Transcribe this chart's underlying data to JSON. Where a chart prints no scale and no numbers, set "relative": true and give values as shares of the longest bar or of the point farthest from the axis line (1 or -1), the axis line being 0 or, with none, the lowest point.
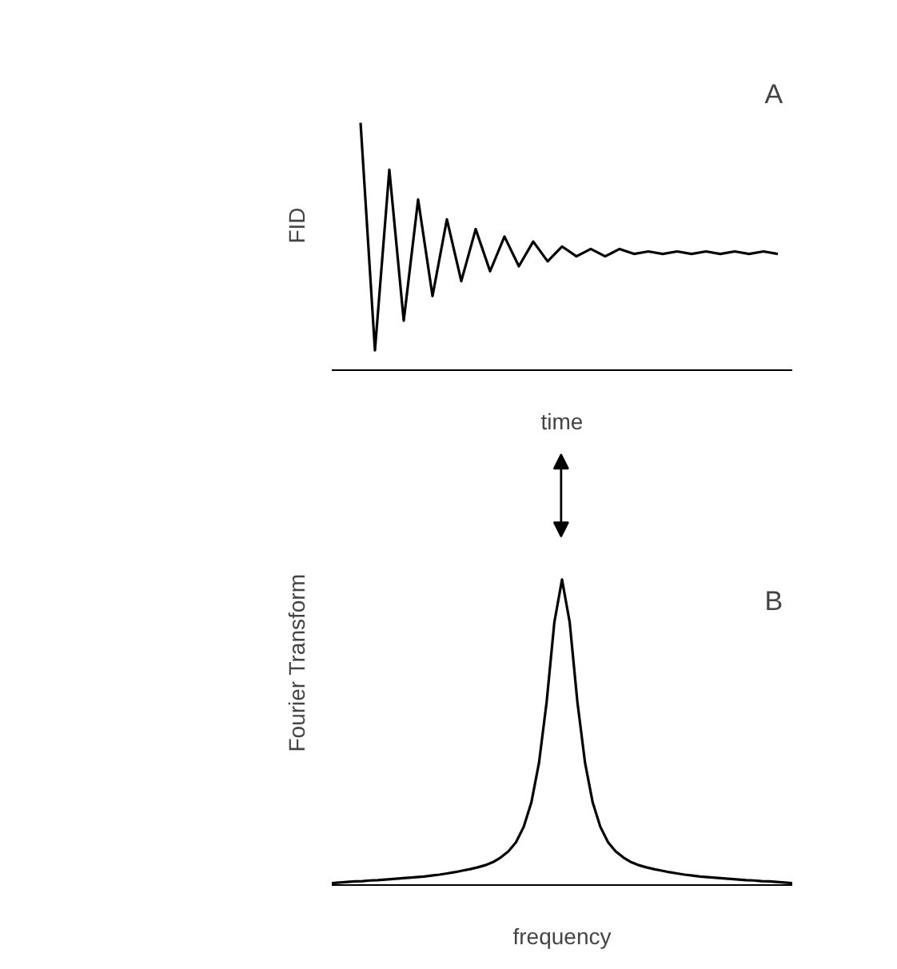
{
  "chart_data": [
    {
      "type": "line",
      "ylabel": "FID",
      "xlabel": "time",
      "annotations": [
        "A"
      ],
      "relative": true,
      "grid": false,
      "categories": [
        null,
        null,
        null,
        null,
        null,
        null,
        null,
        null,
        null,
        null,
        null,
        null,
        null,
        null,
        null,
        null,
        null,
        null,
        null,
        null,
        null,
        null,
        null,
        null,
        null,
        null,
        null,
        null,
        null,
        null,
        null,
        null,
        null
      ],
      "series": [
        {
          "color": "#000000",
          "values": [
            null,
            null,
            1.0,
            0.08,
            0.81,
            0.2,
            0.69,
            0.3,
            0.61,
            0.36,
            0.57,
            0.4,
            0.54,
            0.42,
            0.52,
            0.44,
            0.5,
            0.46,
            0.49,
            0.46,
            0.49,
            0.47,
            0.48,
            0.47,
            0.48,
            0.47,
            0.48,
            0.47,
            0.48,
            0.47,
            0.48,
            0.47,
            null
          ]
        }
      ]
    },
    {
      "type": "line",
      "ylabel": "Fourier Transform",
      "xlabel": "frequency",
      "annotations": [
        "B"
      ],
      "relative": true,
      "grid": false,
      "categories": [
        null,
        null,
        null,
        null,
        null,
        null,
        null,
        null,
        null,
        null,
        null,
        null,
        null,
        null,
        null,
        null,
        null,
        null,
        null,
        null,
        null,
        null,
        null,
        null,
        null,
        null,
        null,
        null,
        null,
        null,
        null,
        null,
        null,
        null,
        null,
        null,
        null,
        null,
        null,
        null,
        null,
        null,
        null,
        null,
        null,
        null,
        null,
        null,
        null,
        null,
        null,
        null,
        null,
        null,
        null,
        null,
        null,
        null,
        null,
        null,
        null
      ],
      "series": [
        {
          "color": "#000000",
          "values": [
            0.006,
            0.008,
            0.01,
            0.012,
            0.013,
            0.015,
            0.016,
            0.018,
            0.02,
            0.022,
            0.024,
            0.026,
            0.028,
            0.031,
            0.034,
            0.038,
            0.042,
            0.047,
            0.052,
            0.058,
            0.065,
            0.075,
            0.09,
            0.11,
            0.14,
            0.19,
            0.27,
            0.4,
            0.6,
            0.86,
            1.0,
            0.86,
            0.6,
            0.4,
            0.27,
            0.19,
            0.14,
            0.11,
            0.09,
            0.075,
            0.065,
            0.058,
            0.052,
            0.047,
            0.042,
            0.038,
            0.034,
            0.031,
            0.028,
            0.026,
            0.024,
            0.022,
            0.02,
            0.018,
            0.016,
            0.015,
            0.013,
            0.012,
            0.01,
            0.008,
            0.006
          ]
        }
      ]
    }
  ]
}
